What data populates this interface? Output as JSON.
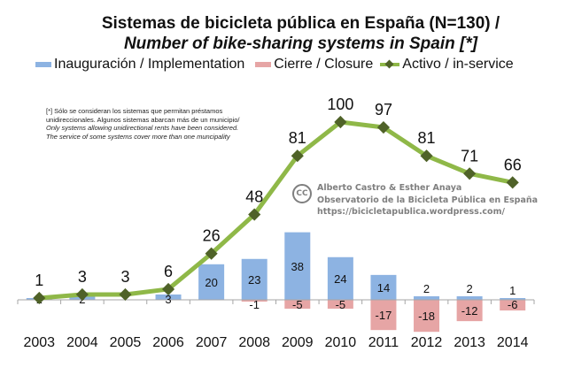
{
  "chart_data": {
    "type": "bar",
    "title": "Sistemas de bicicleta pública en España (N=130) /",
    "subtitle": "Number of bike-sharing systems in Spain [*]",
    "xlabel": "",
    "ylabel": "",
    "categories": [
      "2003",
      "2004",
      "2005",
      "2006",
      "2007",
      "2008",
      "2009",
      "2010",
      "2011",
      "2012",
      "2013",
      "2014"
    ],
    "series": [
      {
        "name": "Inauguración / Implementation",
        "kind": "bar",
        "color": "#8db3e2",
        "values": [
          1,
          2,
          0,
          3,
          20,
          23,
          38,
          24,
          14,
          2,
          2,
          1
        ],
        "labels": [
          "1",
          "2",
          "",
          "3",
          "20",
          "23",
          "38",
          "24",
          "14",
          "2",
          "2",
          "1"
        ]
      },
      {
        "name": "Cierre / Closure",
        "kind": "bar",
        "color": "#e6a5a5",
        "values": [
          0,
          0,
          0,
          0,
          0,
          -1,
          -5,
          -5,
          -17,
          -18,
          -12,
          -6
        ],
        "labels": [
          "",
          "",
          "",
          "",
          "",
          "-1",
          "-5",
          "-5",
          "-17",
          "-18",
          "-12",
          "-6"
        ]
      },
      {
        "name": "Activo / in-service",
        "kind": "line",
        "color": "#8fb848",
        "marker_color": "#4f6228",
        "values": [
          1,
          3,
          3,
          6,
          26,
          48,
          81,
          100,
          97,
          81,
          71,
          66
        ],
        "labels": [
          "1",
          "3",
          "3",
          "6",
          "26",
          "48",
          "81",
          "100",
          "97",
          "81",
          "71",
          "66"
        ]
      }
    ],
    "ylim": [
      -20,
      100
    ],
    "grid": false,
    "legend_position": "top",
    "y_axis_visible": false
  },
  "header": {
    "title_line1": "Sistemas de bicicleta pública en España (N=130) /",
    "title_line2": "Number of bike-sharing systems in Spain [*]"
  },
  "legend": {
    "items": [
      {
        "label": "Inauguración / Implementation",
        "color": "#8db3e2"
      },
      {
        "label": "Cierre / Closure",
        "color": "#e6a5a5"
      },
      {
        "label": "Activo / in-service",
        "color": "#8fb848",
        "marker_color": "#4f6228"
      }
    ]
  },
  "note": {
    "line1": "[*] Sólo se consideran los sistemas que permitan préstamos",
    "line2": "unidireccionales. Algunos sistemas abarcan más de un municipio/",
    "line3": "Only systems allowing unidirectional rents have been considered.",
    "line4": "The service of some systems cover more than one muncipality"
  },
  "credit": {
    "cc_label": "CC",
    "authors": "Alberto Castro & Esther Anaya",
    "organization": "Observatorio de la Bicicleta Pública en España",
    "url": "https://bicicletapublica.wordpress.com/"
  }
}
